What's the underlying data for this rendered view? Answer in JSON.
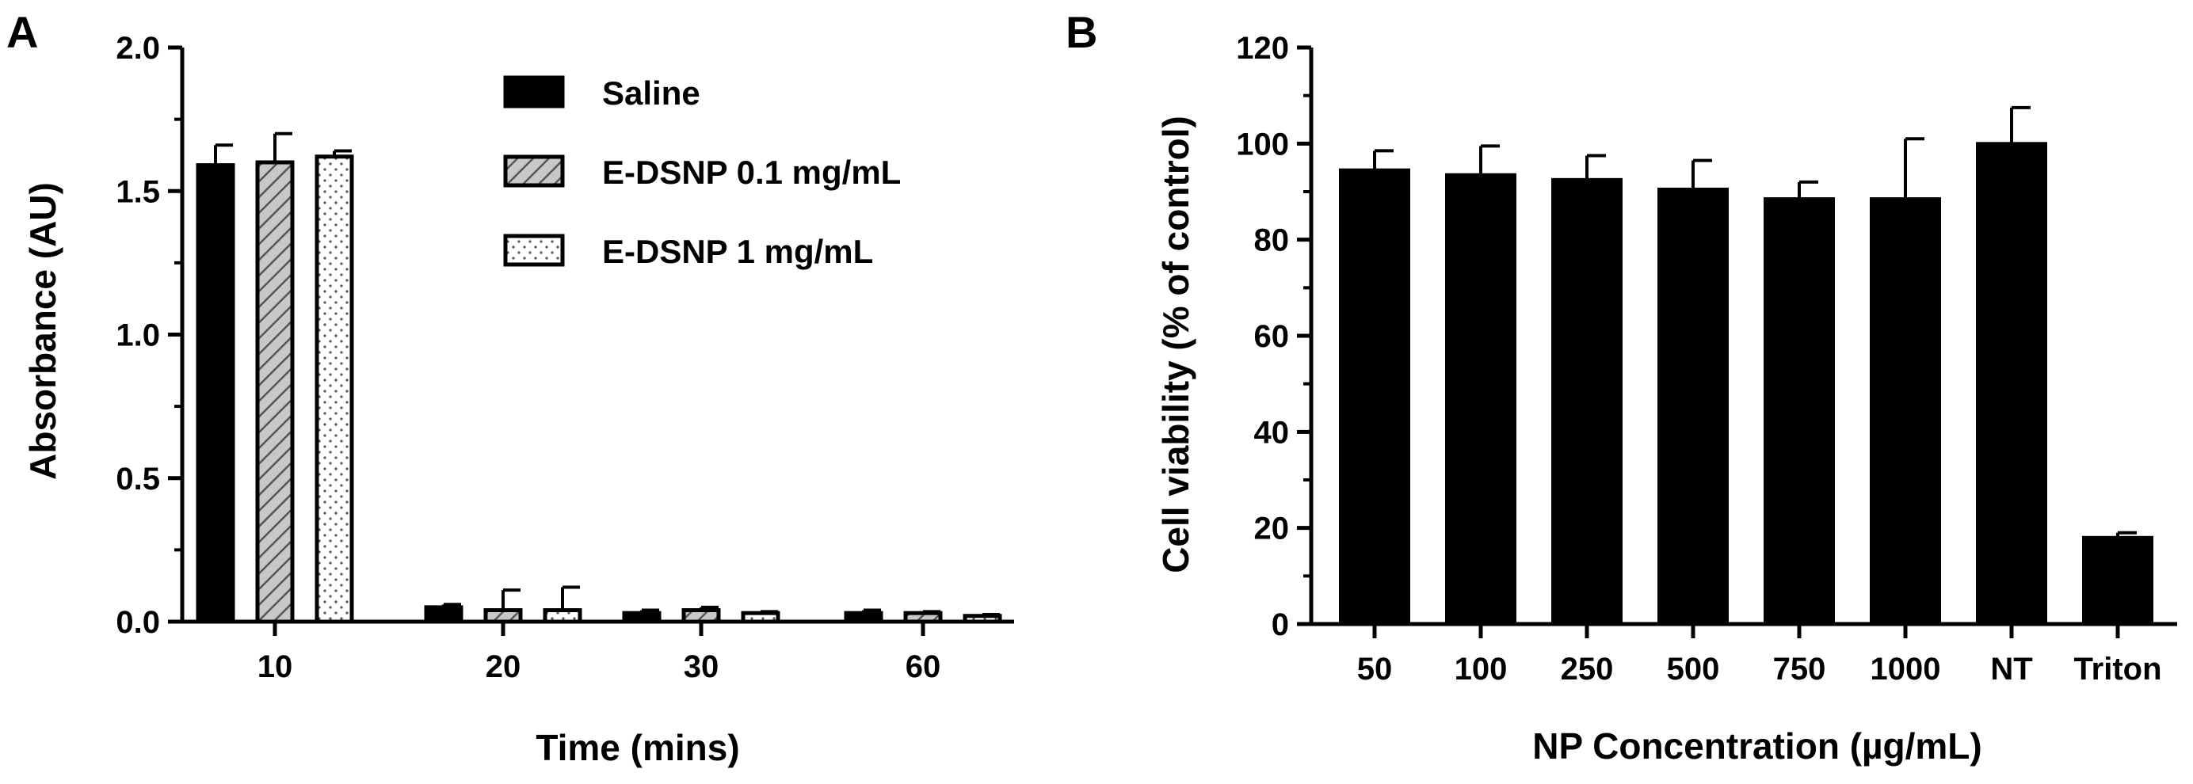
{
  "panels": {
    "a": {
      "label": "A"
    },
    "b": {
      "label": "B"
    }
  },
  "colors": {
    "bar": "#000000",
    "hatch_fill": "#c8c8c8",
    "dot_fill": "#ffffff",
    "axis": "#000000"
  },
  "chart_data": [
    {
      "type": "bar",
      "xlabel": "Time (mins)",
      "ylabel": "Absorbance (AU)",
      "categories": [
        "10",
        "20",
        "30",
        "60"
      ],
      "ylim": [
        0,
        2.0
      ],
      "yticks": [
        "0.0",
        "0.5",
        "1.0",
        "1.5",
        "2.0"
      ],
      "grid": false,
      "legend_position": "top-center",
      "series": [
        {
          "name": "Saline",
          "pattern": "solid",
          "values": [
            1.59,
            0.05,
            0.03,
            0.03
          ],
          "errors": [
            0.07,
            0.01,
            0.01,
            0.01
          ]
        },
        {
          "name": "E-DSNP 0.1 mg/mL",
          "pattern": "hatch",
          "values": [
            1.6,
            0.04,
            0.04,
            0.03
          ],
          "errors": [
            0.1,
            0.07,
            0.01,
            0.005
          ]
        },
        {
          "name": "E-DSNP 1 mg/mL",
          "pattern": "dots",
          "values": [
            1.62,
            0.04,
            0.03,
            0.02
          ],
          "errors": [
            0.02,
            0.08,
            0.005,
            0.005
          ]
        }
      ]
    },
    {
      "type": "bar",
      "xlabel": "NP Concentration (µg/mL)",
      "ylabel": "Cell viability (% of control)",
      "categories": [
        "50",
        "100",
        "250",
        "500",
        "750",
        "1000",
        "NT",
        "Triton"
      ],
      "values": [
        94.5,
        93.5,
        92.5,
        90.5,
        88.5,
        88.5,
        100,
        18
      ],
      "errors": [
        4,
        6,
        5,
        6,
        3.5,
        12.5,
        7.5,
        1
      ],
      "ylim": [
        0,
        120
      ],
      "yticks": [
        "0",
        "20",
        "40",
        "60",
        "80",
        "100",
        "120"
      ],
      "grid": false,
      "legend_position": "none"
    }
  ]
}
